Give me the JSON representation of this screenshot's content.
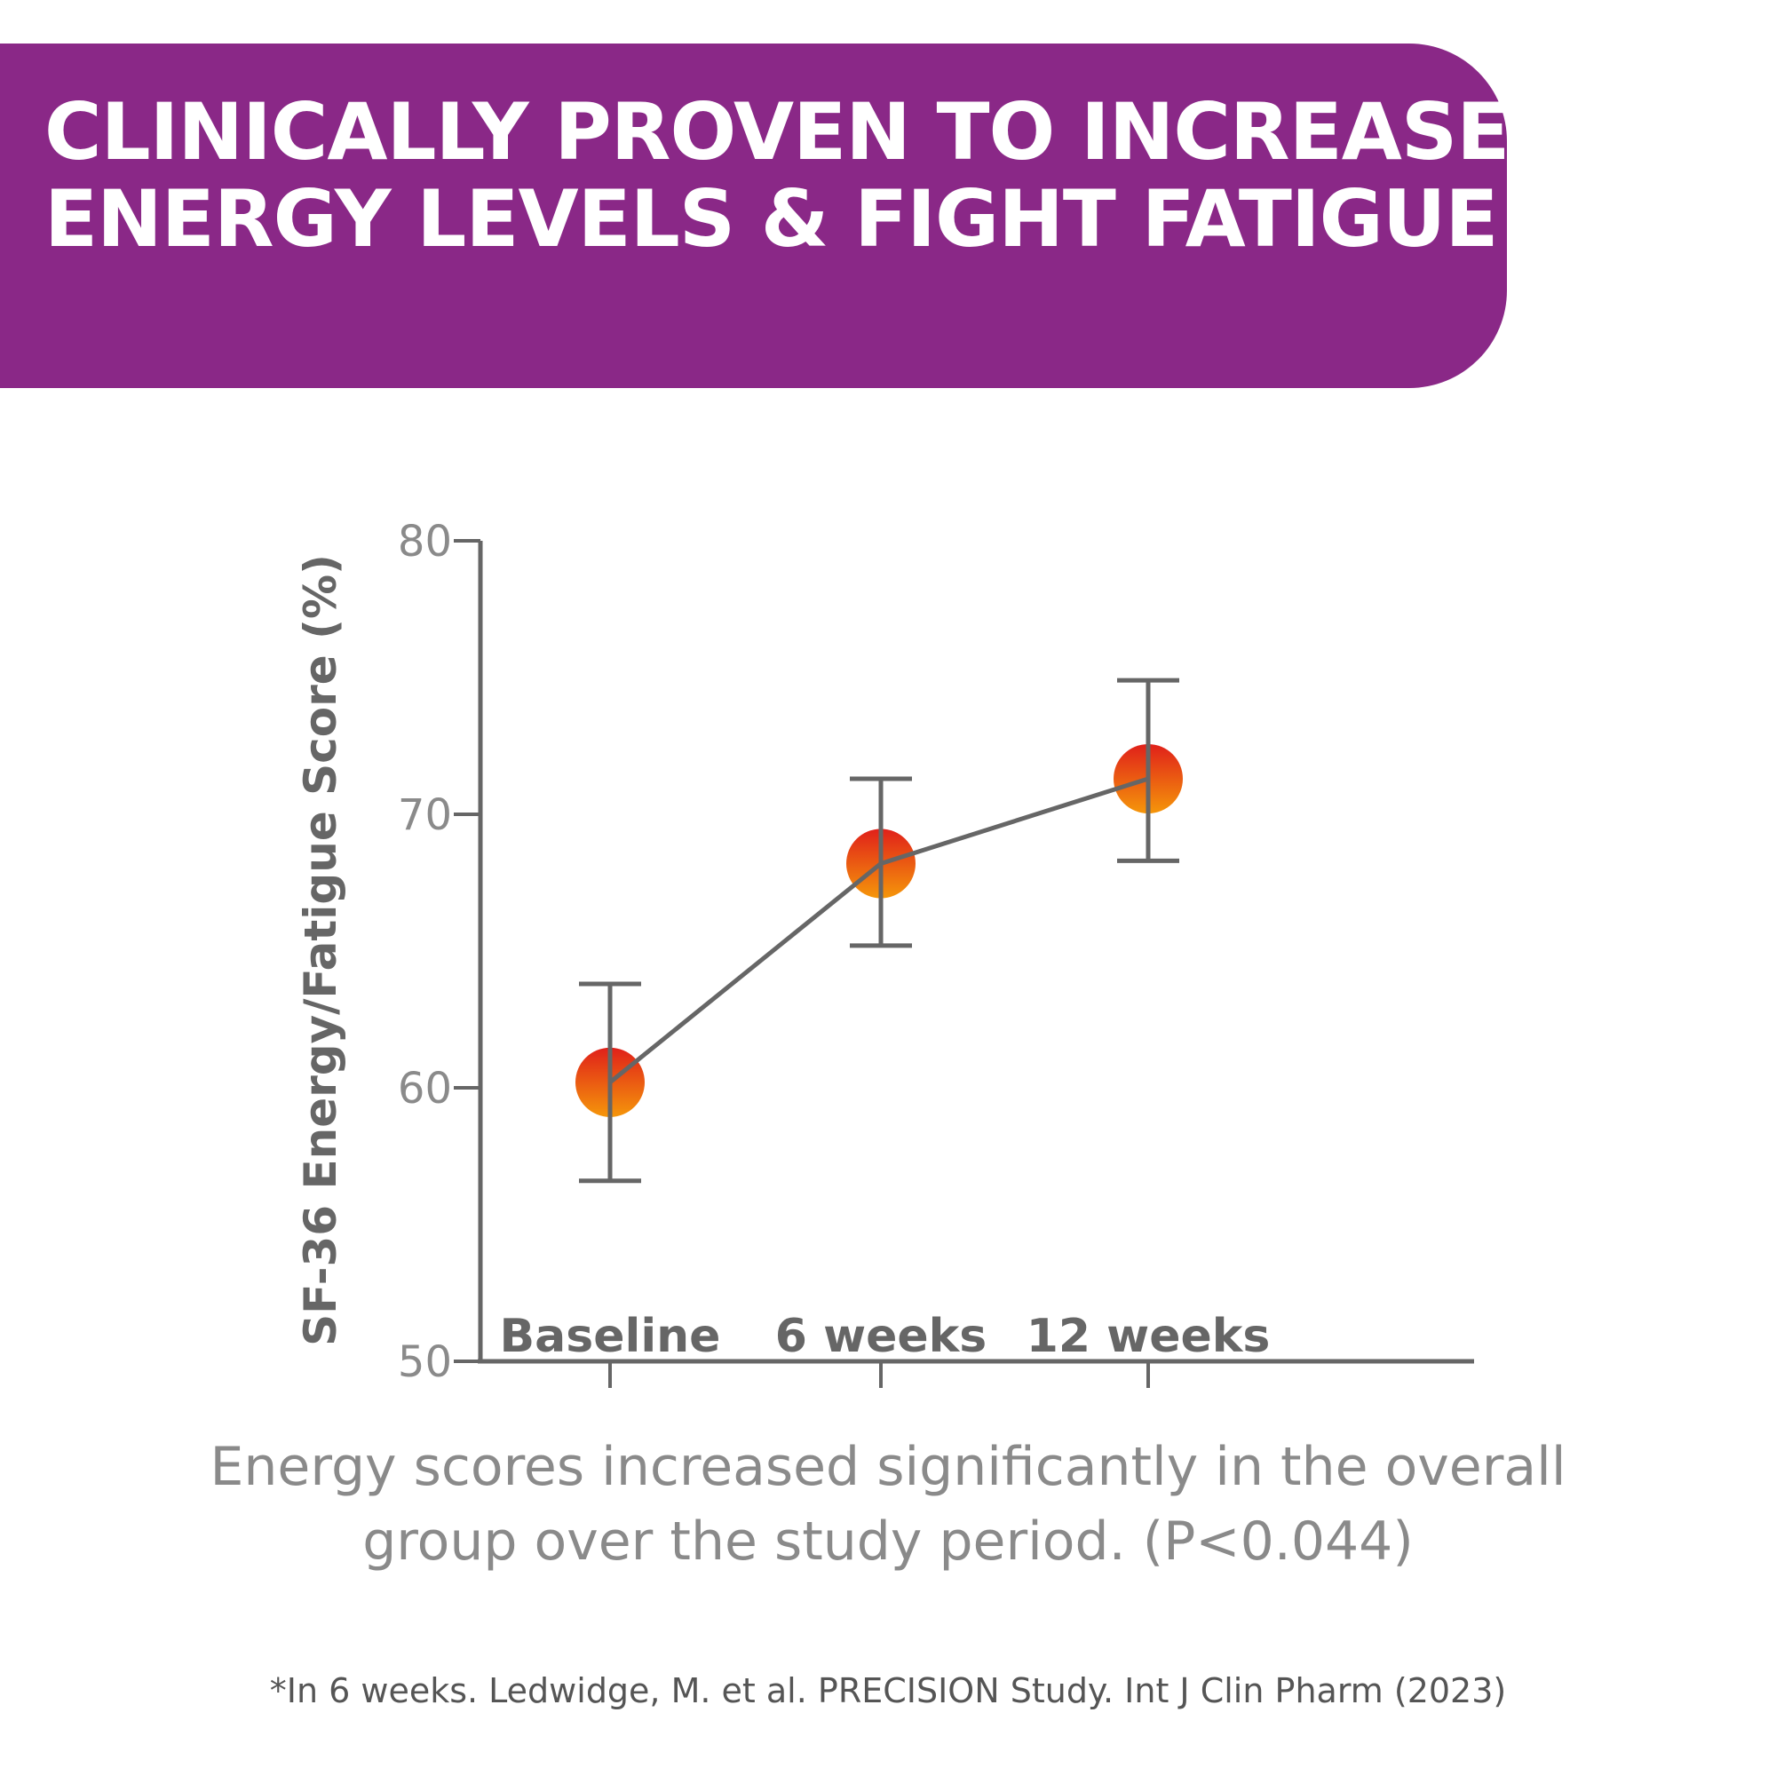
{
  "header": {
    "title_line1": "CLINICALLY PROVEN TO INCREASE",
    "title_line2": "ENERGY LEVELS & FIGHT FATIGUE",
    "title_mark": "*"
  },
  "chart_data": {
    "type": "line",
    "ylabel": "SF-36 Energy/Fatigue Score (%)",
    "xlabel": "",
    "categories": [
      "Baseline",
      "6 weeks",
      "12 weeks"
    ],
    "values": [
      60.2,
      68.2,
      71.3
    ],
    "error_upper": [
      63.8,
      71.3,
      74.9
    ],
    "error_lower": [
      56.6,
      65.2,
      68.3
    ],
    "ylim": [
      50,
      80
    ],
    "yticks": [
      "50",
      "60",
      "70",
      "80"
    ],
    "grid": false,
    "marker_colors": {
      "top": "#e0201a",
      "bottom": "#f5960a"
    },
    "line_color": "#666666"
  },
  "caption": {
    "line1": "Energy scores increased significantly in the overall",
    "line2": "group over the study period. (P<0.044)"
  },
  "footnote": "*In 6 weeks. Ledwidge, M. et al. PRECISION Study. Int J Clin Pharm (2023)",
  "colors": {
    "banner": "#8a2887",
    "axis": "#666666"
  }
}
